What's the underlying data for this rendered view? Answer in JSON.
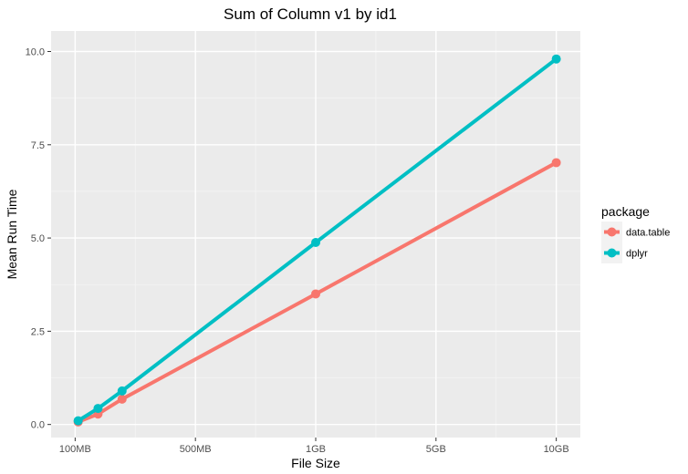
{
  "chart_data": {
    "type": "line",
    "title": "Sum of Column v1 by id1",
    "xlabel": "File Size",
    "ylabel": "Mean Run Time",
    "x_ticks": [
      {
        "value": 0,
        "label": "100MB"
      },
      {
        "value": 2,
        "label": "500MB"
      },
      {
        "value": 4,
        "label": "1GB"
      },
      {
        "value": 6,
        "label": "5GB"
      },
      {
        "value": 8,
        "label": "10GB"
      }
    ],
    "y_ticks": [
      {
        "value": 0,
        "label": "0.0"
      },
      {
        "value": 2.5,
        "label": "2.5"
      },
      {
        "value": 5,
        "label": "5.0"
      },
      {
        "value": 7.5,
        "label": "7.5"
      },
      {
        "value": 10,
        "label": "10.0"
      }
    ],
    "xlim": [
      -0.4,
      8.4
    ],
    "ylim": [
      -0.35,
      10.55
    ],
    "grid": true,
    "legend": {
      "title": "package",
      "placement": "right"
    },
    "series": [
      {
        "name": "data.table",
        "color": "#f8766d",
        "points": [
          {
            "x": 0.05,
            "y": 0.07
          },
          {
            "x": 0.38,
            "y": 0.28
          },
          {
            "x": 0.78,
            "y": 0.68
          },
          {
            "x": 4.0,
            "y": 3.5
          },
          {
            "x": 8.0,
            "y": 7.02
          }
        ]
      },
      {
        "name": "dplyr",
        "color": "#00bfc4",
        "points": [
          {
            "x": 0.05,
            "y": 0.1
          },
          {
            "x": 0.38,
            "y": 0.43
          },
          {
            "x": 0.78,
            "y": 0.9
          },
          {
            "x": 4.0,
            "y": 4.88
          },
          {
            "x": 8.0,
            "y": 9.8
          }
        ]
      }
    ]
  }
}
